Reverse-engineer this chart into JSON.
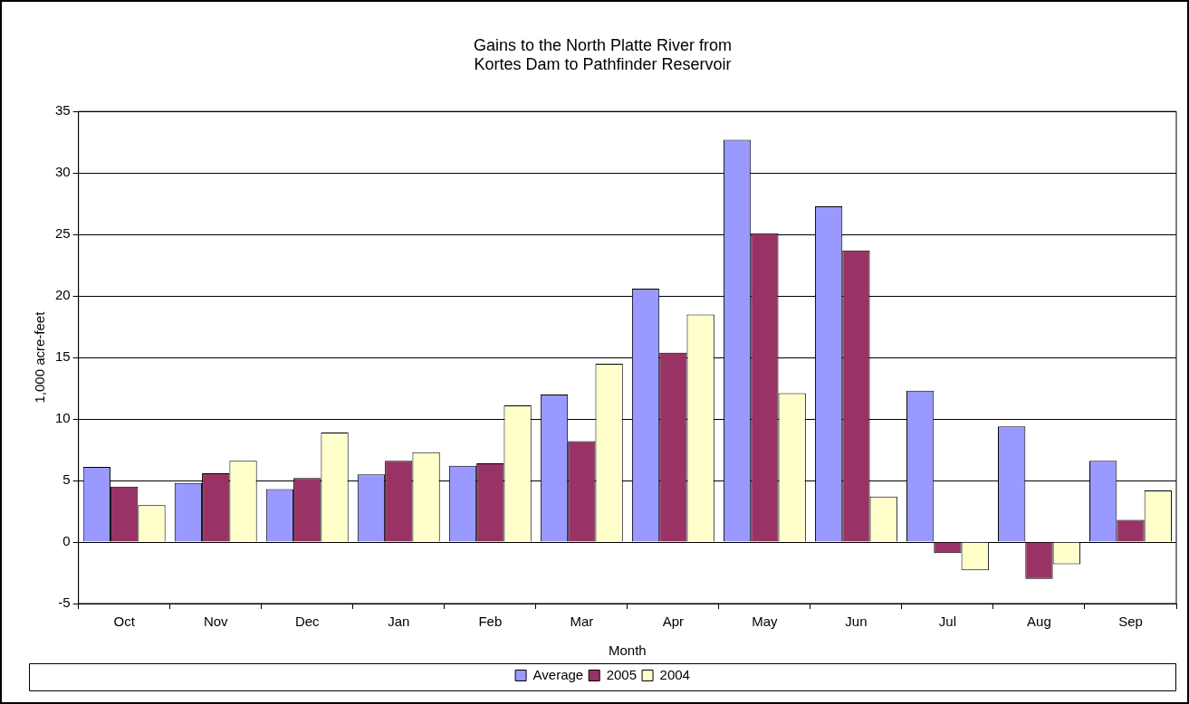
{
  "chart_data": {
    "type": "bar",
    "title": "Gains to the North Platte River from\nKortes Dam to Pathfinder Reservoir",
    "xlabel": "Month",
    "ylabel": "1,000 acre-feet",
    "categories": [
      "Oct",
      "Nov",
      "Dec",
      "Jan",
      "Feb",
      "Mar",
      "Apr",
      "May",
      "Jun",
      "Jul",
      "Aug",
      "Sep"
    ],
    "series": [
      {
        "name": "Average",
        "color": "#9999ff",
        "values": [
          6.1,
          4.8,
          4.3,
          5.5,
          6.2,
          12.0,
          20.6,
          32.7,
          27.3,
          12.3,
          9.4,
          6.6
        ]
      },
      {
        "name": "2005",
        "color": "#993366",
        "values": [
          4.5,
          5.6,
          5.2,
          6.6,
          6.4,
          8.2,
          15.4,
          25.1,
          23.7,
          -0.9,
          -3.0,
          1.8
        ]
      },
      {
        "name": "2004",
        "color": "#ffffcc",
        "values": [
          3.0,
          6.6,
          8.9,
          7.3,
          11.1,
          14.5,
          18.5,
          12.1,
          3.7,
          -2.3,
          -1.8,
          4.2
        ]
      }
    ],
    "ylim": [
      -5,
      35
    ],
    "yticks": [
      -5,
      0,
      5,
      10,
      15,
      20,
      25,
      30,
      35
    ],
    "grid": "y",
    "legend": "bottom"
  }
}
